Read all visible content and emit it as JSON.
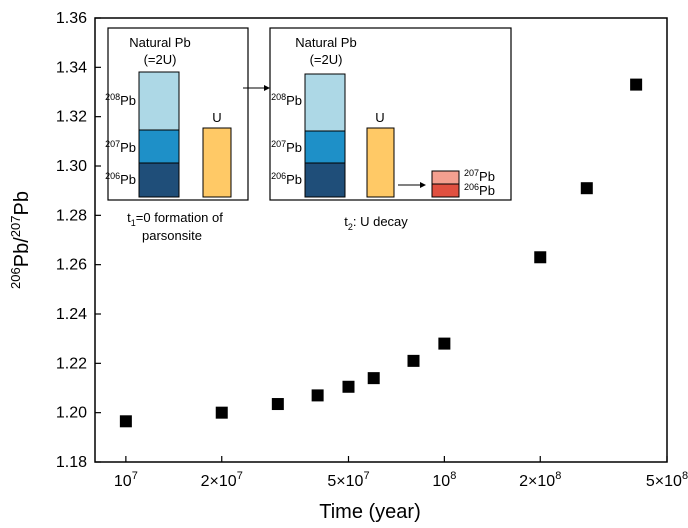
{
  "chart_data": {
    "type": "scatter",
    "title": "",
    "xlabel": "Time (year)",
    "ylabel": {
      "pre": "206",
      "mid": "Pb/",
      "sup2": "207",
      "post": "Pb"
    },
    "xscale": "log",
    "xlim": [
      8000000,
      500000000
    ],
    "ylim": [
      1.18,
      1.36
    ],
    "yticks": [
      1.18,
      1.2,
      1.22,
      1.24,
      1.26,
      1.28,
      1.3,
      1.32,
      1.34,
      1.36
    ],
    "xticks": [
      {
        "value": 10000000,
        "base": "10",
        "exp": "7"
      },
      {
        "value": 20000000,
        "base": "2×10",
        "exp": "7"
      },
      {
        "value": 50000000,
        "base": "5×10",
        "exp": "7"
      },
      {
        "value": 100000000,
        "base": "10",
        "exp": "8"
      },
      {
        "value": 200000000,
        "base": "2×10",
        "exp": "8"
      },
      {
        "value": 500000000,
        "base": "5×10",
        "exp": "8"
      }
    ],
    "marker": "square",
    "marker_color": "#000000",
    "points": [
      {
        "x": 10000000,
        "y": 1.1965
      },
      {
        "x": 20000000,
        "y": 1.2
      },
      {
        "x": 30000000,
        "y": 1.2035
      },
      {
        "x": 40000000,
        "y": 1.207
      },
      {
        "x": 50000000,
        "y": 1.2105
      },
      {
        "x": 60000000,
        "y": 1.214
      },
      {
        "x": 80000000,
        "y": 1.221
      },
      {
        "x": 100000000,
        "y": 1.228
      },
      {
        "x": 200000000,
        "y": 1.263
      },
      {
        "x": 280000000,
        "y": 1.291
      },
      {
        "x": 400000000,
        "y": 1.333
      }
    ]
  },
  "inset": {
    "left_box": {
      "title_line1": "Natural Pb",
      "title_line2": "(=2U)",
      "pb208": {
        "sup": "208",
        "base": "Pb"
      },
      "pb207": {
        "sup": "207",
        "base": "Pb"
      },
      "pb206": {
        "sup": "206",
        "base": "Pb"
      },
      "u_label": "U",
      "caption_line1_pre": "t",
      "caption_line1_sub": "1",
      "caption_line1_post": "=0 formation of",
      "caption_line2": "parsonsite"
    },
    "right_box": {
      "title_line1": "Natural Pb",
      "title_line2": "(=2U)",
      "pb208": {
        "sup": "208",
        "base": "Pb"
      },
      "pb207": {
        "sup": "207",
        "base": "Pb"
      },
      "pb206": {
        "sup": "206",
        "base": "Pb"
      },
      "u_label": "U",
      "decay207": {
        "sup": "207",
        "base": "Pb"
      },
      "decay206": {
        "sup": "206",
        "base": "Pb"
      },
      "caption_pre": "t",
      "caption_sub": "2",
      "caption_post": ": U decay"
    },
    "colors": {
      "pb208": "#add8e6",
      "pb207": "#1e90c8",
      "pb206": "#1f4e79",
      "uranium": "#ffc966",
      "decay207": "#f4a090",
      "decay206": "#e05040"
    }
  }
}
